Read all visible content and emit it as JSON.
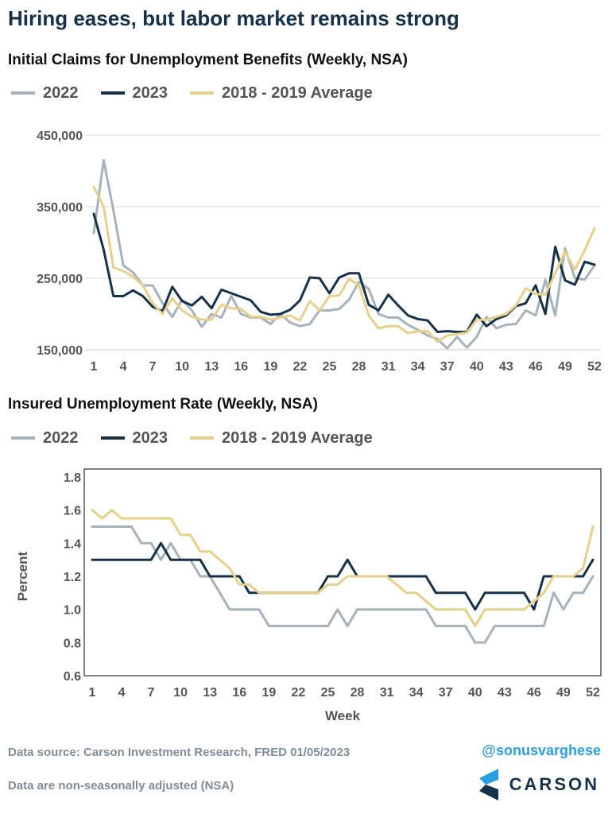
{
  "header": {
    "title": "Hiring eases, but labor market remains strong"
  },
  "colors": {
    "s2022": "#a6b3bd",
    "s2023": "#15324a",
    "avg": "#e8d08a",
    "grid": "#d9d9d9",
    "axis": "#555555"
  },
  "legend": [
    "2022",
    "2023",
    "2018 - 2019 Average"
  ],
  "chart_data": [
    {
      "type": "line",
      "title": "Initial Claims for Unemployment Benefits (Weekly, NSA)",
      "xlabel": "",
      "ylabel": "",
      "x": [
        1,
        2,
        3,
        4,
        5,
        6,
        7,
        8,
        9,
        10,
        11,
        12,
        13,
        14,
        15,
        16,
        17,
        18,
        19,
        20,
        21,
        22,
        23,
        24,
        25,
        26,
        27,
        28,
        29,
        30,
        31,
        32,
        33,
        34,
        35,
        36,
        37,
        38,
        39,
        40,
        41,
        42,
        43,
        44,
        45,
        46,
        47,
        48,
        49,
        50,
        51,
        52
      ],
      "x_ticks": [
        "1",
        "4",
        "7",
        "10",
        "13",
        "16",
        "19",
        "22",
        "25",
        "28",
        "31",
        "34",
        "37",
        "40",
        "43",
        "46",
        "49",
        "52"
      ],
      "y_ticks": [
        "150,000",
        "250,000",
        "350,000",
        "450,000"
      ],
      "ylim": [
        150000,
        450000
      ],
      "grid": true,
      "series": [
        {
          "name": "2022",
          "values": [
            313000,
            415000,
            345000,
            268000,
            258000,
            240000,
            240000,
            215000,
            196000,
            220000,
            205000,
            182000,
            200000,
            195000,
            225000,
            200000,
            195000,
            195000,
            186000,
            200000,
            188000,
            183000,
            186000,
            205000,
            205000,
            207000,
            220000,
            245000,
            235000,
            200000,
            195000,
            195000,
            185000,
            178000,
            170000,
            165000,
            152000,
            168000,
            153000,
            168000,
            196000,
            180000,
            185000,
            186000,
            205000,
            198000,
            248000,
            198000,
            292000,
            250000,
            248000,
            268000
          ]
        },
        {
          "name": "2023",
          "values": [
            340000,
            290000,
            225000,
            225000,
            233000,
            225000,
            210000,
            204000,
            238000,
            218000,
            212000,
            224000,
            208000,
            234000,
            229000,
            224000,
            219000,
            203000,
            199000,
            200000,
            206000,
            219000,
            251000,
            250000,
            229000,
            251000,
            257000,
            257000,
            213000,
            205000,
            227000,
            212000,
            198000,
            193000,
            191000,
            175000,
            176000,
            175000,
            175000,
            199000,
            183000,
            193000,
            198000,
            211000,
            215000,
            240000,
            200000,
            294000,
            247000,
            241000,
            273000,
            269000
          ]
        },
        {
          "name": "2018 - 2019 Average",
          "values": [
            378000,
            350000,
            265000,
            260000,
            252000,
            240000,
            215000,
            200000,
            222000,
            205000,
            196000,
            192000,
            192000,
            213000,
            208000,
            207000,
            196000,
            196000,
            192000,
            195000,
            198000,
            191000,
            218000,
            205000,
            225000,
            226000,
            249000,
            240000,
            198000,
            180000,
            183000,
            183000,
            173000,
            176000,
            176000,
            161000,
            170000,
            172000,
            174000,
            192000,
            192000,
            196000,
            200000,
            212000,
            236000,
            228000,
            227000,
            257000,
            287000,
            262000,
            289000,
            320000
          ]
        }
      ]
    },
    {
      "type": "line",
      "title": "Insured Unemployment Rate (Weekly, NSA)",
      "xlabel": "Week",
      "ylabel": "Percent",
      "x": [
        1,
        2,
        3,
        4,
        5,
        6,
        7,
        8,
        9,
        10,
        11,
        12,
        13,
        14,
        15,
        16,
        17,
        18,
        19,
        20,
        21,
        22,
        23,
        24,
        25,
        26,
        27,
        28,
        29,
        30,
        31,
        32,
        33,
        34,
        35,
        36,
        37,
        38,
        39,
        40,
        41,
        42,
        43,
        44,
        45,
        46,
        47,
        48,
        49,
        50,
        51,
        52
      ],
      "x_ticks": [
        "1",
        "4",
        "7",
        "10",
        "13",
        "16",
        "19",
        "22",
        "25",
        "28",
        "31",
        "34",
        "37",
        "40",
        "43",
        "46",
        "49",
        "52"
      ],
      "y_ticks": [
        "0.6",
        "0.8",
        "1.0",
        "1.2",
        "1.4",
        "1.6",
        "1.8"
      ],
      "ylim": [
        0.6,
        1.8
      ],
      "grid": false,
      "series": [
        {
          "name": "2022",
          "values": [
            1.5,
            1.5,
            1.5,
            1.5,
            1.5,
            1.4,
            1.4,
            1.3,
            1.4,
            1.3,
            1.3,
            1.2,
            1.2,
            1.1,
            1.0,
            1.0,
            1.0,
            1.0,
            0.9,
            0.9,
            0.9,
            0.9,
            0.9,
            0.9,
            0.9,
            1.0,
            0.9,
            1.0,
            1.0,
            1.0,
            1.0,
            1.0,
            1.0,
            1.0,
            1.0,
            0.9,
            0.9,
            0.9,
            0.9,
            0.8,
            0.8,
            0.9,
            0.9,
            0.9,
            0.9,
            0.9,
            0.9,
            1.1,
            1.0,
            1.1,
            1.1,
            1.2
          ]
        },
        {
          "name": "2023",
          "values": [
            1.3,
            1.3,
            1.3,
            1.3,
            1.3,
            1.3,
            1.3,
            1.4,
            1.3,
            1.3,
            1.3,
            1.3,
            1.2,
            1.2,
            1.2,
            1.2,
            1.1,
            1.1,
            1.1,
            1.1,
            1.1,
            1.1,
            1.1,
            1.1,
            1.2,
            1.2,
            1.3,
            1.2,
            1.2,
            1.2,
            1.2,
            1.2,
            1.2,
            1.2,
            1.2,
            1.1,
            1.1,
            1.1,
            1.1,
            1.0,
            1.1,
            1.1,
            1.1,
            1.1,
            1.1,
            1.0,
            1.2,
            1.2,
            1.2,
            1.2,
            1.2,
            1.3
          ]
        },
        {
          "name": "2018 - 2019 Average",
          "values": [
            1.6,
            1.55,
            1.6,
            1.55,
            1.55,
            1.55,
            1.55,
            1.55,
            1.55,
            1.45,
            1.45,
            1.35,
            1.35,
            1.3,
            1.25,
            1.15,
            1.15,
            1.1,
            1.1,
            1.1,
            1.1,
            1.1,
            1.1,
            1.1,
            1.15,
            1.15,
            1.2,
            1.2,
            1.2,
            1.2,
            1.2,
            1.15,
            1.1,
            1.1,
            1.05,
            1.0,
            1.0,
            1.0,
            1.0,
            0.9,
            1.0,
            1.0,
            1.0,
            1.0,
            1.0,
            1.05,
            1.1,
            1.2,
            1.2,
            1.2,
            1.25,
            1.5
          ]
        }
      ]
    }
  ],
  "footer": {
    "source": "Data source: Carson Investment Research, FRED   01/05/2023",
    "note": "Data are non-seasonally adjusted (NSA)",
    "handle": "@sonusvarghese",
    "brand": "CARSON"
  }
}
